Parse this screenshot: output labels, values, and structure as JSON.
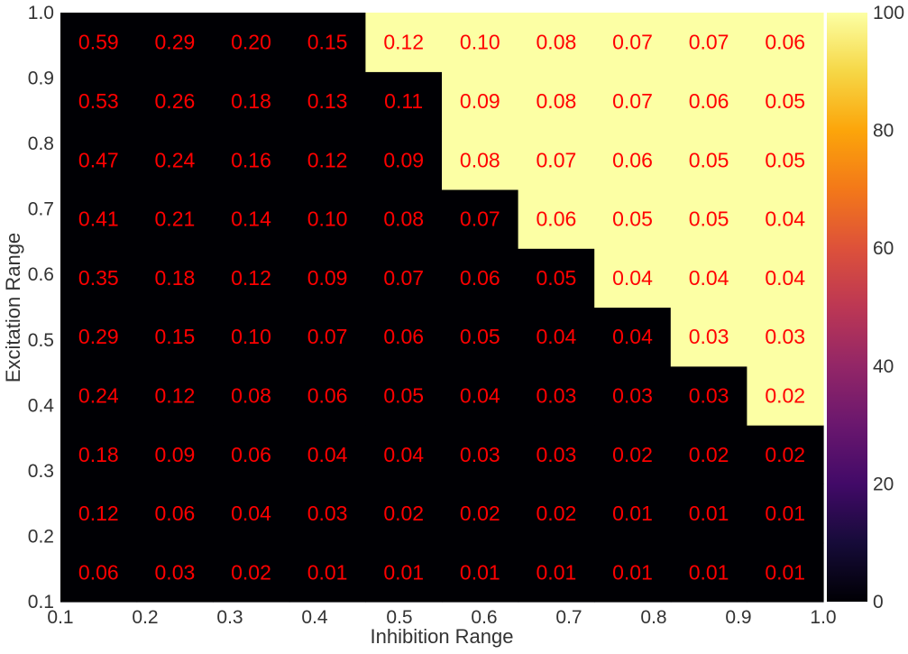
{
  "chart_data": {
    "type": "heatmap",
    "xlabel": "Inhibition Range",
    "ylabel": "Excitation Range",
    "x_ticks": [
      "0.1",
      "0.2",
      "0.3",
      "0.4",
      "0.5",
      "0.6",
      "0.7",
      "0.8",
      "0.9",
      "1.0"
    ],
    "y_ticks": [
      "0.1",
      "0.2",
      "0.3",
      "0.4",
      "0.5",
      "0.6",
      "0.7",
      "0.8",
      "0.9",
      "1.0"
    ],
    "xlim": [
      0.1,
      1.0
    ],
    "ylim": [
      0.1,
      1.0
    ],
    "colorbar": {
      "colormap": "inferno",
      "range": [
        0,
        100
      ],
      "ticks": [
        "0",
        "20",
        "40",
        "60",
        "80",
        "100"
      ]
    },
    "cell_color_values": [
      [
        0,
        0,
        0,
        0,
        0,
        0,
        0,
        0,
        0,
        0
      ],
      [
        0,
        0,
        0,
        0,
        0,
        0,
        0,
        0,
        0,
        0
      ],
      [
        0,
        0,
        0,
        0,
        0,
        0,
        0,
        0,
        0,
        0
      ],
      [
        0,
        0,
        0,
        0,
        0,
        0,
        0,
        0,
        0,
        100
      ],
      [
        0,
        0,
        0,
        0,
        0,
        0,
        0,
        0,
        100,
        100
      ],
      [
        0,
        0,
        0,
        0,
        0,
        0,
        0,
        100,
        100,
        100
      ],
      [
        0,
        0,
        0,
        0,
        0,
        0,
        100,
        100,
        100,
        100
      ],
      [
        0,
        0,
        0,
        0,
        0,
        100,
        100,
        100,
        100,
        100
      ],
      [
        0,
        0,
        0,
        0,
        0,
        100,
        100,
        100,
        100,
        100
      ],
      [
        0,
        0,
        0,
        0,
        100,
        100,
        100,
        100,
        100,
        100
      ]
    ],
    "annotations": [
      [
        "0.06",
        "0.03",
        "0.02",
        "0.01",
        "0.01",
        "0.01",
        "0.01",
        "0.01",
        "0.01",
        "0.01"
      ],
      [
        "0.12",
        "0.06",
        "0.04",
        "0.03",
        "0.02",
        "0.02",
        "0.02",
        "0.01",
        "0.01",
        "0.01"
      ],
      [
        "0.18",
        "0.09",
        "0.06",
        "0.04",
        "0.04",
        "0.03",
        "0.03",
        "0.02",
        "0.02",
        "0.02"
      ],
      [
        "0.24",
        "0.12",
        "0.08",
        "0.06",
        "0.05",
        "0.04",
        "0.03",
        "0.03",
        "0.03",
        "0.02"
      ],
      [
        "0.29",
        "0.15",
        "0.10",
        "0.07",
        "0.06",
        "0.05",
        "0.04",
        "0.04",
        "0.03",
        "0.03"
      ],
      [
        "0.35",
        "0.18",
        "0.12",
        "0.09",
        "0.07",
        "0.06",
        "0.05",
        "0.04",
        "0.04",
        "0.04"
      ],
      [
        "0.41",
        "0.21",
        "0.14",
        "0.10",
        "0.08",
        "0.07",
        "0.06",
        "0.05",
        "0.05",
        "0.04"
      ],
      [
        "0.47",
        "0.24",
        "0.16",
        "0.12",
        "0.09",
        "0.08",
        "0.07",
        "0.06",
        "0.05",
        "0.05"
      ],
      [
        "0.53",
        "0.26",
        "0.18",
        "0.13",
        "0.11",
        "0.09",
        "0.08",
        "0.07",
        "0.06",
        "0.05"
      ],
      [
        "0.59",
        "0.29",
        "0.20",
        "0.15",
        "0.12",
        "0.10",
        "0.08",
        "0.07",
        "0.07",
        "0.06"
      ]
    ],
    "annotation_color": "#ff0000",
    "grid": false
  }
}
